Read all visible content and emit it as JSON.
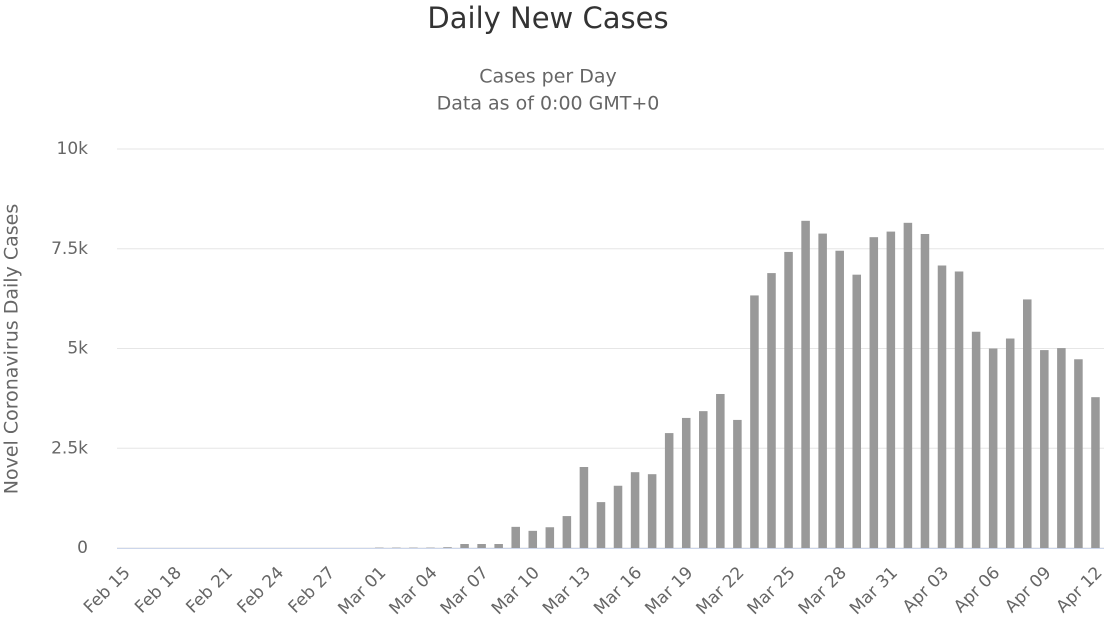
{
  "chart_data": {
    "type": "bar",
    "title": "Daily New Cases",
    "subtitle": [
      "Cases per Day",
      "Data as of 0:00 GMT+0"
    ],
    "y_label": "Novel Coronavirus Daily Cases",
    "categories": [
      "Feb 15",
      null,
      null,
      "Feb 18",
      null,
      null,
      "Feb 21",
      null,
      null,
      "Feb 24",
      null,
      null,
      "Feb 27",
      null,
      null,
      "Mar 01",
      null,
      null,
      "Mar 04",
      null,
      null,
      "Mar 07",
      null,
      null,
      "Mar 10",
      null,
      null,
      "Mar 13",
      null,
      null,
      "Mar 16",
      null,
      null,
      "Mar 19",
      null,
      null,
      "Mar 22",
      null,
      null,
      "Mar 25",
      null,
      null,
      "Mar 28",
      null,
      null,
      "Mar 31",
      null,
      null,
      "Apr 03",
      null,
      null,
      "Apr 06",
      null,
      null,
      "Apr 09",
      null,
      null,
      "Apr 12"
    ],
    "values": [
      0,
      0,
      0,
      0,
      0,
      0,
      0,
      0,
      0,
      0,
      0,
      0,
      0,
      0,
      0,
      10,
      10,
      10,
      10,
      20,
      100,
      100,
      100,
      530,
      430,
      520,
      800,
      2030,
      1150,
      1560,
      1900,
      1850,
      2880,
      3260,
      3430,
      3860,
      3210,
      6330,
      6890,
      7420,
      8200,
      7880,
      7450,
      6850,
      7790,
      7930,
      8150,
      7870,
      7080,
      6930,
      5420,
      5000,
      5250,
      6230,
      4960,
      5010,
      4730,
      3780
    ],
    "color": "#999999",
    "ylim": [
      0,
      10000
    ],
    "yticks": [
      0,
      {
        "value": 2500,
        "label": "2.5k"
      },
      {
        "value": 5000,
        "label": "5k"
      },
      {
        "value": 7500,
        "label": "7.5k"
      },
      {
        "value": 10000,
        "label": "10k"
      }
    ],
    "grid": true
  }
}
